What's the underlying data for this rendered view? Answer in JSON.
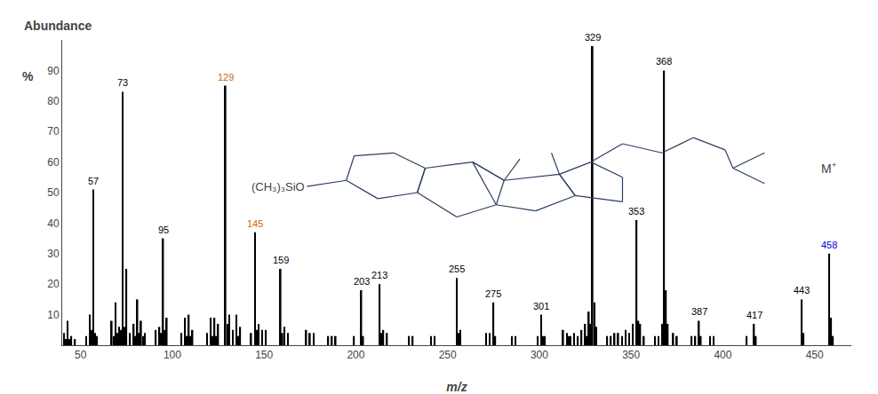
{
  "chart_data": {
    "type": "bar",
    "xlabel": "m/z",
    "ylabel": [
      "Abundance",
      "%"
    ],
    "xlim": [
      40,
      470
    ],
    "ylim": [
      0,
      100
    ],
    "xticks": [
      50,
      100,
      150,
      200,
      250,
      300,
      350,
      400,
      450
    ],
    "yticks": [
      10,
      20,
      30,
      40,
      50,
      60,
      70,
      80,
      90
    ],
    "grid": false,
    "color": "#000000",
    "x": [
      41,
      42,
      43,
      44,
      45,
      47,
      53,
      55,
      56,
      57,
      58,
      59,
      67,
      68,
      69,
      70,
      71,
      72,
      73,
      74,
      75,
      77,
      79,
      80,
      81,
      82,
      83,
      84,
      85,
      91,
      93,
      94,
      95,
      96,
      97,
      105,
      107,
      108,
      109,
      110,
      111,
      119,
      121,
      122,
      123,
      124,
      125,
      129,
      130,
      131,
      133,
      135,
      136,
      137,
      143,
      145,
      146,
      147,
      149,
      151,
      159,
      160,
      161,
      163,
      173,
      175,
      177,
      185,
      187,
      189,
      199,
      203,
      204,
      213,
      214,
      215,
      217,
      229,
      231,
      241,
      243,
      255,
      256,
      257,
      271,
      273,
      275,
      276,
      285,
      287,
      299,
      301,
      302,
      303,
      313,
      315,
      316,
      317,
      319,
      321,
      323,
      325,
      326,
      327,
      328,
      329,
      330,
      331,
      337,
      339,
      341,
      343,
      345,
      347,
      349,
      351,
      353,
      354,
      355,
      357,
      363,
      365,
      367,
      368,
      369,
      370,
      373,
      375,
      383,
      385,
      387,
      388,
      393,
      395,
      413,
      417,
      418,
      443,
      444,
      458,
      459,
      460
    ],
    "values": [
      4,
      2,
      8,
      2,
      3,
      2,
      3,
      10,
      5,
      51,
      4,
      3,
      8,
      3,
      14,
      4,
      6,
      5,
      83,
      6,
      25,
      4,
      7,
      3,
      15,
      4,
      8,
      3,
      4,
      5,
      6,
      4,
      35,
      5,
      9,
      4,
      9,
      3,
      10,
      3,
      5,
      4,
      9,
      3,
      9,
      3,
      7,
      85,
      7,
      10,
      5,
      10,
      3,
      6,
      4,
      37,
      5,
      7,
      5,
      5,
      25,
      4,
      6,
      4,
      5,
      4,
      4,
      3,
      3,
      3,
      3,
      18,
      3,
      20,
      4,
      5,
      4,
      3,
      3,
      3,
      3,
      22,
      4,
      5,
      4,
      4,
      14,
      3,
      3,
      3,
      3,
      10,
      3,
      3,
      5,
      4,
      3,
      3,
      4,
      3,
      5,
      7,
      3,
      11,
      7,
      98,
      14,
      6,
      3,
      3,
      4,
      4,
      3,
      5,
      4,
      7,
      41,
      8,
      7,
      3,
      3,
      3,
      7,
      90,
      18,
      7,
      4,
      3,
      3,
      3,
      8,
      3,
      3,
      3,
      3,
      7,
      3,
      15,
      4,
      30,
      9,
      3
    ],
    "peak_labels": [
      {
        "x": 57,
        "y": 51,
        "label": "57",
        "color": "#000000"
      },
      {
        "x": 73,
        "y": 83,
        "label": "73",
        "color": "#000000"
      },
      {
        "x": 95,
        "y": 35,
        "label": "95",
        "color": "#000000"
      },
      {
        "x": 129,
        "y": 85,
        "label": "129",
        "color": "#cc6600"
      },
      {
        "x": 145,
        "y": 37,
        "label": "145",
        "color": "#cc6600"
      },
      {
        "x": 159,
        "y": 25,
        "label": "159",
        "color": "#000000"
      },
      {
        "x": 203,
        "y": 18,
        "label": "203",
        "color": "#000000"
      },
      {
        "x": 213,
        "y": 20,
        "label": "213",
        "color": "#000000"
      },
      {
        "x": 255,
        "y": 22,
        "label": "255",
        "color": "#000000"
      },
      {
        "x": 275,
        "y": 14,
        "label": "275",
        "color": "#000000"
      },
      {
        "x": 301,
        "y": 10,
        "label": "301",
        "color": "#000000"
      },
      {
        "x": 329,
        "y": 98,
        "label": "329",
        "color": "#000000"
      },
      {
        "x": 353,
        "y": 41,
        "label": "353",
        "color": "#000000"
      },
      {
        "x": 368,
        "y": 90,
        "label": "368",
        "color": "#000000"
      },
      {
        "x": 387,
        "y": 8,
        "label": "387",
        "color": "#000000"
      },
      {
        "x": 417,
        "y": 7,
        "label": "417",
        "color": "#000000"
      },
      {
        "x": 443,
        "y": 15,
        "label": "443",
        "color": "#000000"
      },
      {
        "x": 458,
        "y": 30,
        "label": "458",
        "color": "#0000cc"
      }
    ],
    "mplus": {
      "text": "M",
      "superscript": "+",
      "x": 458,
      "y": 55
    },
    "structure_label": "(CH₃)₃SiO"
  }
}
